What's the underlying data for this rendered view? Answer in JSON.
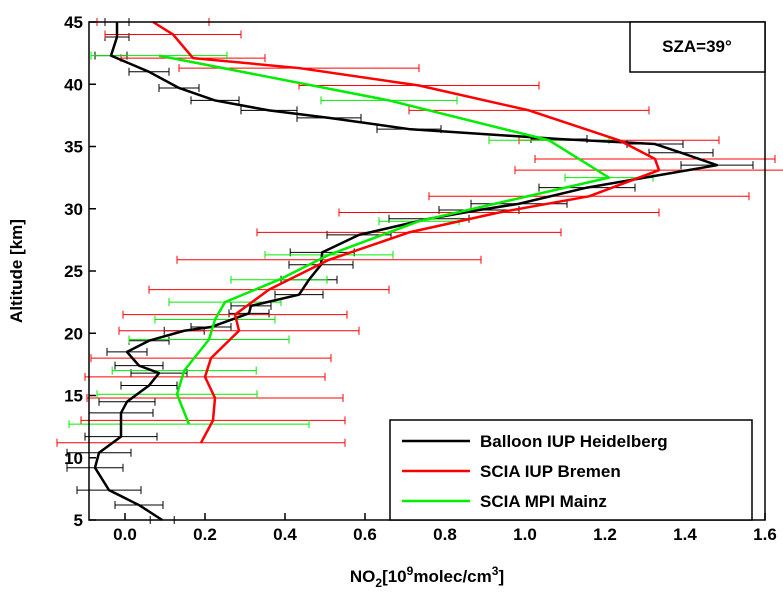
{
  "chart_data": {
    "type": "line",
    "ylabel": "Altitude [km]",
    "xlabel_parts": [
      "NO",
      "2",
      "[10",
      "9",
      "molec/cm",
      "3",
      "]"
    ],
    "annotation": "SZA=39°",
    "xlim": [
      -0.09,
      1.6
    ],
    "ylim": [
      5,
      45
    ],
    "xticks": [
      {
        "value": 0,
        "label": "0.0"
      },
      0.2,
      0.4,
      0.6,
      0.8,
      {
        "value": 1,
        "label": "1.0"
      },
      1.2,
      1.4,
      1.6
    ],
    "yticks": [
      5,
      10,
      15,
      20,
      25,
      30,
      35,
      40,
      45
    ],
    "legend": "lower right",
    "series": [
      {
        "name": "Balloon IUP Heidelberg",
        "color": "#000000",
        "altitude": [
          5.0,
          6.2,
          7.4,
          9.2,
          10.4,
          11.7,
          13.6,
          14.5,
          15.8,
          16.8,
          17.4,
          18.5,
          19.4,
          20.2,
          20.5,
          21.6,
          22.2,
          23.1,
          24.3,
          25.5,
          26.5,
          27.9,
          29.2,
          29.9,
          30.4,
          31.7,
          33.5,
          34.5,
          35.2,
          35.6,
          36.4,
          37.3,
          37.9,
          38.7,
          39.7,
          41.0,
          42.3,
          43.8,
          45.0
        ],
        "values": [
          0.093,
          0.035,
          -0.04,
          -0.075,
          -0.065,
          -0.01,
          -0.01,
          0.005,
          0.06,
          0.085,
          0.035,
          0.005,
          0.06,
          0.148,
          0.215,
          0.31,
          0.315,
          0.435,
          0.46,
          0.49,
          0.493,
          0.585,
          0.76,
          0.885,
          0.985,
          1.155,
          1.48,
          1.39,
          1.325,
          1.085,
          0.71,
          0.51,
          0.36,
          0.225,
          0.135,
          0.06,
          -0.035,
          -0.02,
          -0.02
        ],
        "errors": [
          0.03,
          0.06,
          0.08,
          0.07,
          0.08,
          0.09,
          0.08,
          0.07,
          0.07,
          0.07,
          0.06,
          0.05,
          0.05,
          0.05,
          0.05,
          0.05,
          0.05,
          0.06,
          0.07,
          0.08,
          0.08,
          0.08,
          0.1,
          0.1,
          0.12,
          0.12,
          0.09,
          0.08,
          0.07,
          0.07,
          0.08,
          0.08,
          0.07,
          0.06,
          0.05,
          0.05,
          0.04,
          0.03,
          0.03
        ]
      },
      {
        "name": "SCIA IUP Bremen",
        "color": "#ff0000",
        "altitude": [
          11.2,
          13.0,
          14.8,
          16.5,
          18.0,
          20.2,
          21.5,
          23.5,
          25.9,
          28.1,
          29.7,
          31.0,
          33.1,
          34.0,
          35.5,
          37.9,
          39.9,
          41.3,
          42.1,
          44.0,
          45.0
        ],
        "values": [
          0.19,
          0.22,
          0.225,
          0.2,
          0.215,
          0.285,
          0.275,
          0.36,
          0.51,
          0.71,
          0.935,
          1.16,
          1.335,
          1.325,
          1.235,
          1.01,
          0.735,
          0.435,
          0.17,
          0.12,
          0.07
        ],
        "errors": [
          0.36,
          0.33,
          0.32,
          0.3,
          0.3,
          0.3,
          0.28,
          0.3,
          0.38,
          0.38,
          0.4,
          0.4,
          0.36,
          0.3,
          0.25,
          0.3,
          0.3,
          0.3,
          0.18,
          0.17,
          0.14
        ]
      },
      {
        "name": "SCIA MPI Mainz",
        "color": "#00ee00",
        "altitude": [
          12.7,
          15.1,
          17.0,
          19.5,
          21.1,
          22.5,
          24.3,
          26.3,
          29.0,
          32.5,
          35.5,
          38.7,
          42.3
        ],
        "values": [
          0.16,
          0.13,
          0.148,
          0.21,
          0.225,
          0.25,
          0.385,
          0.51,
          0.735,
          1.21,
          1.06,
          0.66,
          0.085
        ],
        "errors": [
          0.3,
          0.2,
          0.18,
          0.2,
          0.15,
          0.14,
          0.12,
          0.16,
          0.1,
          0.11,
          0.15,
          0.17,
          0.17
        ]
      }
    ]
  }
}
